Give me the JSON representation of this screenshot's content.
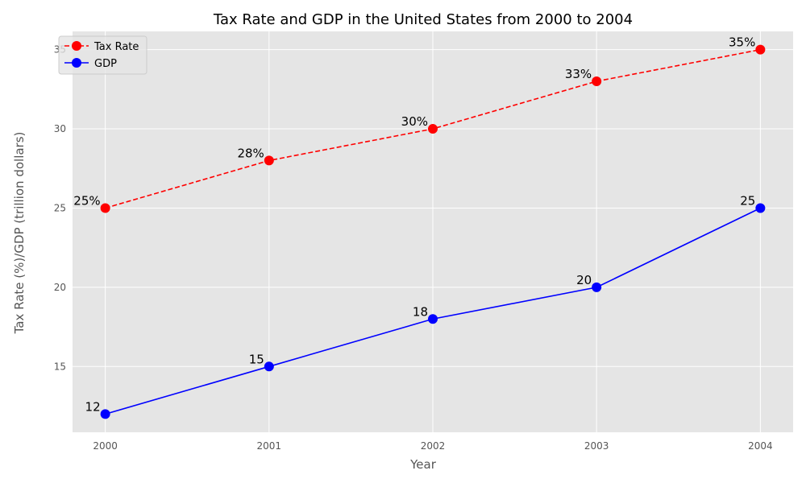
{
  "chart_data": {
    "type": "line",
    "title": "Tax Rate and GDP in the United States from 2000 to 2004",
    "xlabel": "Year",
    "ylabel": "Tax Rate (%)/GDP (trillion dollars)",
    "x": [
      "2000",
      "2001",
      "2002",
      "2003",
      "2004"
    ],
    "xlim": [
      1999.8,
      2004.2
    ],
    "ylim": [
      10.85,
      36.15
    ],
    "yticks": [
      15,
      20,
      25,
      30,
      35
    ],
    "grid": true,
    "legend_position": "top-left",
    "series": [
      {
        "name": "Tax Rate",
        "values": [
          25,
          28,
          30,
          33,
          35
        ],
        "labels": [
          "25%",
          "28%",
          "30%",
          "33%",
          "35%"
        ],
        "color": "#ff0000",
        "line_style": "dashed",
        "marker": "circle"
      },
      {
        "name": "GDP",
        "values": [
          12,
          15,
          18,
          20,
          25
        ],
        "labels": [
          "12",
          "15",
          "18",
          "20",
          "25"
        ],
        "color": "#0000ff",
        "line_style": "solid",
        "marker": "circle"
      }
    ],
    "style_colors": {
      "plot_background": "#e5e5e5",
      "grid": "#ffffff"
    }
  }
}
